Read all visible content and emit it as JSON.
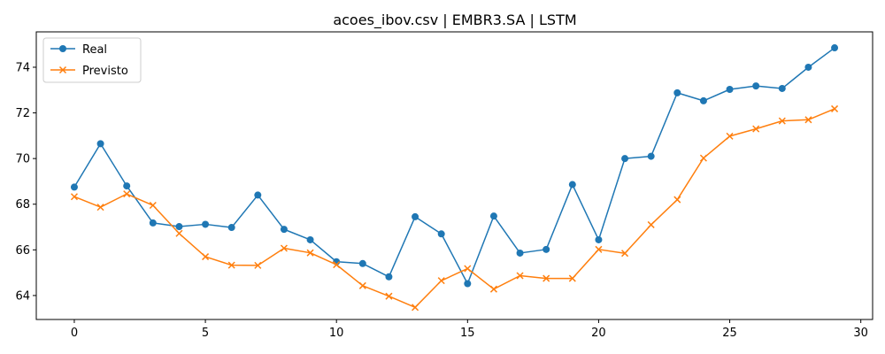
{
  "chart_data": {
    "type": "line",
    "title": "acoes_ibov.csv | EMBR3.SA | LSTM",
    "xlabel": "",
    "ylabel": "",
    "xlim": [
      -1.45,
      30.45
    ],
    "ylim": [
      62.95,
      75.55
    ],
    "xticks": [
      0,
      5,
      10,
      15,
      20,
      25,
      30
    ],
    "yticks": [
      64,
      66,
      68,
      70,
      72,
      74
    ],
    "grid": false,
    "legend": "top-left",
    "x": [
      0,
      1,
      2,
      3,
      4,
      5,
      6,
      7,
      8,
      9,
      10,
      11,
      12,
      13,
      14,
      15,
      16,
      17,
      18,
      19,
      20,
      21,
      22,
      23,
      24,
      25,
      26,
      27,
      28,
      29
    ],
    "series": [
      {
        "name": "Real",
        "color": "#1f77b4",
        "marker": "circle",
        "values": [
          68.75,
          70.65,
          68.8,
          67.18,
          67.02,
          67.12,
          66.98,
          68.4,
          66.9,
          66.44,
          65.48,
          65.4,
          64.82,
          67.45,
          66.7,
          64.52,
          67.48,
          65.86,
          66.02,
          68.86,
          66.44,
          70.0,
          70.1,
          72.88,
          72.53,
          73.03,
          73.18,
          73.07,
          74.0,
          74.85
        ]
      },
      {
        "name": "Previsto",
        "color": "#ff7f0e",
        "marker": "x",
        "values": [
          68.33,
          67.87,
          68.45,
          67.95,
          66.72,
          65.7,
          65.33,
          65.32,
          66.07,
          65.87,
          65.35,
          64.43,
          63.97,
          63.48,
          64.65,
          65.18,
          64.28,
          64.87,
          64.75,
          64.75,
          66.02,
          65.85,
          67.1,
          68.2,
          70.02,
          70.98,
          71.3,
          71.65,
          71.7,
          72.18
        ]
      }
    ]
  }
}
